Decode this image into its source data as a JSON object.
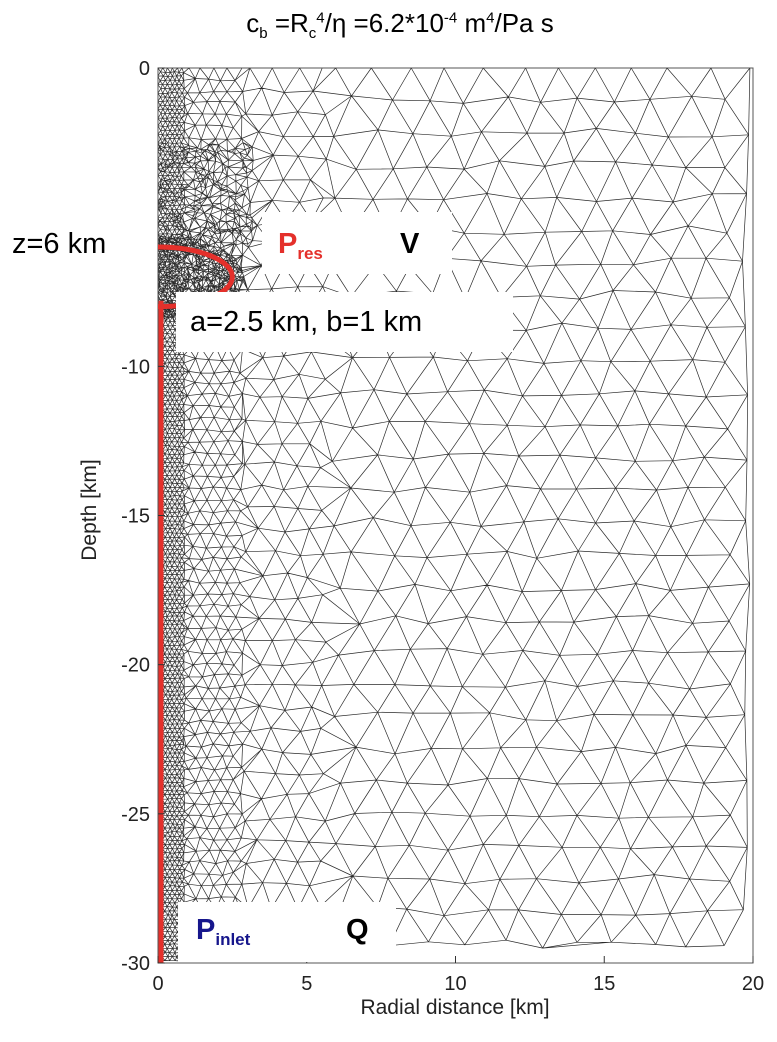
{
  "title": {
    "c_text": "c",
    "c_sub": "b",
    "eq1": " =R",
    "r_sub": "c",
    "r_sup": "4",
    "eq2": "/η =6.2*10",
    "exp": "-4",
    "unit1": " m",
    "unit_sup": "4",
    "unit2": "/Pa s"
  },
  "axes": {
    "xlabel": "Radial distance [km]",
    "ylabel": "Depth [km]",
    "xlim": [
      0,
      20
    ],
    "ylim": [
      -30,
      0
    ],
    "xticks": [
      "0",
      "5",
      "10",
      "15",
      "20"
    ],
    "yticks": [
      "0",
      "-10",
      "-15",
      "-20",
      "-25",
      "-30"
    ],
    "ytick_values": [
      0,
      -10,
      -15,
      -20,
      -25,
      -30
    ]
  },
  "annotations": {
    "depth_label": "z=6 km",
    "reservoir_pressure": "P",
    "reservoir_pressure_sub": "res",
    "reservoir_volume": "V",
    "dimensions": "a=2.5 km, b=1 km",
    "inlet_pressure": "P",
    "inlet_pressure_sub": "inlet",
    "flux": "Q"
  },
  "model": {
    "reservoir_center_depth_km": -7,
    "reservoir_semi_axis_a_km": 2.5,
    "reservoir_semi_axis_b_km": 1,
    "conduit_top_km": -7.8,
    "conduit_bottom_km": -30
  },
  "colors": {
    "reservoir_outline": "#e4302b",
    "conduit": "#e4302b",
    "inlet_label": "#16168c",
    "mesh": "#2a2a2a"
  }
}
